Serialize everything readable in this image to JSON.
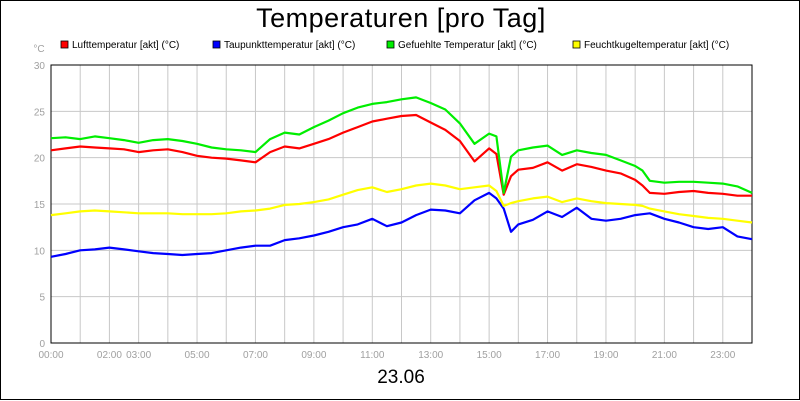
{
  "chart_data": {
    "type": "line",
    "title": "Temperaturen [pro Tag]",
    "xlabel": "23.06",
    "ylabel": "°C",
    "ylim": [
      0,
      30
    ],
    "yticks": [
      0,
      5,
      10,
      15,
      20,
      25,
      30
    ],
    "xlim": [
      0,
      24
    ],
    "xticks": [
      {
        "h": 0,
        "label": "00:00"
      },
      {
        "h": 2,
        "label": "02:00"
      },
      {
        "h": 3,
        "label": "03:00"
      },
      {
        "h": 5,
        "label": "05:00"
      },
      {
        "h": 7,
        "label": "07:00"
      },
      {
        "h": 9,
        "label": "09:00"
      },
      {
        "h": 11,
        "label": "11:00"
      },
      {
        "h": 13,
        "label": "13:00"
      },
      {
        "h": 15,
        "label": "15:00"
      },
      {
        "h": 17,
        "label": "17:00"
      },
      {
        "h": 19,
        "label": "19:00"
      },
      {
        "h": 21,
        "label": "21:00"
      },
      {
        "h": 23,
        "label": "23:00"
      }
    ],
    "grid": true,
    "legend_position": "top",
    "x": [
      0,
      0.5,
      1,
      1.5,
      2,
      2.5,
      3,
      3.5,
      4,
      4.5,
      5,
      5.5,
      6,
      6.5,
      7,
      7.5,
      8,
      8.5,
      9,
      9.5,
      10,
      10.5,
      11,
      11.5,
      12,
      12.5,
      13,
      13.5,
      14,
      14.5,
      15,
      15.25,
      15.5,
      15.75,
      16,
      16.5,
      17,
      17.5,
      18,
      18.5,
      19,
      19.5,
      20,
      20.25,
      20.5,
      21,
      21.5,
      22,
      22.5,
      23,
      23.5,
      24
    ],
    "series": [
      {
        "name": "Lufttemperatur [akt] (°C)",
        "color": "#ff0000",
        "values": [
          20.8,
          21.0,
          21.2,
          21.1,
          21.0,
          20.9,
          20.6,
          20.8,
          20.9,
          20.6,
          20.2,
          20.0,
          19.9,
          19.7,
          19.5,
          20.6,
          21.2,
          21.0,
          21.5,
          22.0,
          22.7,
          23.3,
          23.9,
          24.2,
          24.5,
          24.6,
          23.8,
          23.0,
          21.8,
          19.6,
          21.0,
          20.4,
          16.0,
          18.0,
          18.7,
          18.9,
          19.5,
          18.6,
          19.3,
          19.0,
          18.6,
          18.3,
          17.6,
          17.0,
          16.2,
          16.1,
          16.3,
          16.4,
          16.2,
          16.1,
          15.9,
          15.9
        ]
      },
      {
        "name": "Taupunkttemperatur [akt] (°C)",
        "color": "#0000ff",
        "values": [
          9.3,
          9.6,
          10.0,
          10.1,
          10.3,
          10.1,
          9.9,
          9.7,
          9.6,
          9.5,
          9.6,
          9.7,
          10.0,
          10.3,
          10.5,
          10.5,
          11.1,
          11.3,
          11.6,
          12.0,
          12.5,
          12.8,
          13.4,
          12.6,
          13.0,
          13.8,
          14.4,
          14.3,
          14.0,
          15.4,
          16.2,
          15.6,
          14.5,
          12.0,
          12.8,
          13.3,
          14.2,
          13.6,
          14.6,
          13.4,
          13.2,
          13.4,
          13.8,
          13.9,
          14.0,
          13.4,
          13.0,
          12.5,
          12.3,
          12.5,
          11.5,
          11.2
        ]
      },
      {
        "name": "Gefuehlte Temperatur [akt] (°C)",
        "color": "#00ee00",
        "values": [
          22.1,
          22.2,
          22.0,
          22.3,
          22.1,
          21.9,
          21.6,
          21.9,
          22.0,
          21.8,
          21.5,
          21.1,
          20.9,
          20.8,
          20.6,
          22.0,
          22.7,
          22.5,
          23.3,
          24.0,
          24.8,
          25.4,
          25.8,
          26.0,
          26.3,
          26.5,
          25.9,
          25.2,
          23.7,
          21.5,
          22.6,
          22.3,
          16.2,
          20.1,
          20.8,
          21.1,
          21.3,
          20.3,
          20.8,
          20.5,
          20.3,
          19.7,
          19.1,
          18.6,
          17.5,
          17.3,
          17.4,
          17.4,
          17.3,
          17.2,
          16.9,
          16.2
        ]
      },
      {
        "name": "Feuchtkugeltemperatur [akt] (°C)",
        "color": "#ffff00",
        "values": [
          13.8,
          14.0,
          14.2,
          14.3,
          14.2,
          14.1,
          14.0,
          14.0,
          14.0,
          13.9,
          13.9,
          13.9,
          14.0,
          14.2,
          14.3,
          14.5,
          14.9,
          15.0,
          15.2,
          15.5,
          16.0,
          16.5,
          16.8,
          16.3,
          16.6,
          17.0,
          17.2,
          17.0,
          16.6,
          16.8,
          17.0,
          16.4,
          14.8,
          15.1,
          15.3,
          15.6,
          15.8,
          15.2,
          15.6,
          15.3,
          15.1,
          15.0,
          14.9,
          14.8,
          14.5,
          14.2,
          13.9,
          13.7,
          13.5,
          13.4,
          13.2,
          13.0
        ]
      }
    ]
  }
}
